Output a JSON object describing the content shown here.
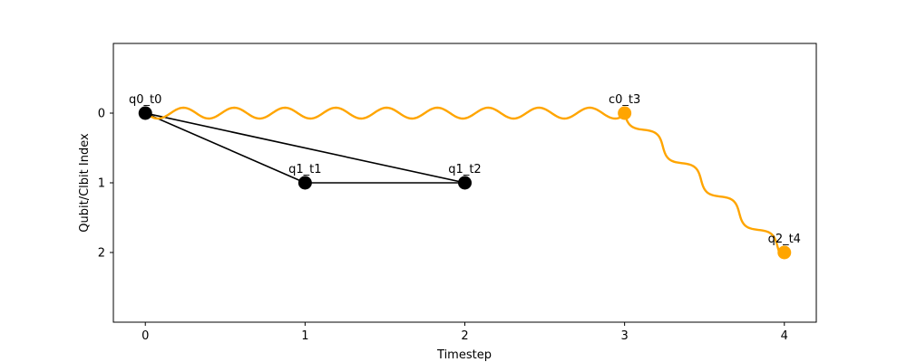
{
  "chart_data": {
    "type": "scatter",
    "title": "",
    "xlabel": "Timestep",
    "ylabel": "Qubit/Clbit Index",
    "xlim": [
      -0.2,
      4.2
    ],
    "ylim": [
      3.0,
      -1.0
    ],
    "y_inverted": true,
    "xticks": [
      0,
      1,
      2,
      3,
      4
    ],
    "yticks": [
      0,
      1,
      2
    ],
    "grid": false,
    "nodes": [
      {
        "label": "q0_t0",
        "x": 0,
        "y": 0,
        "color": "#000000"
      },
      {
        "label": "q1_t1",
        "x": 1,
        "y": 1,
        "color": "#000000"
      },
      {
        "label": "q1_t2",
        "x": 2,
        "y": 1,
        "color": "#000000"
      },
      {
        "label": "c0_t3",
        "x": 3,
        "y": 0,
        "color": "#ffa500"
      },
      {
        "label": "q2_t4",
        "x": 4,
        "y": 2,
        "color": "#ffa500"
      }
    ],
    "edges": [
      {
        "from": 0,
        "to": 1,
        "style": "straight",
        "color": "#000000"
      },
      {
        "from": 0,
        "to": 2,
        "style": "straight",
        "color": "#000000"
      },
      {
        "from": 1,
        "to": 2,
        "style": "straight",
        "color": "#000000"
      },
      {
        "from": 0,
        "to": 3,
        "style": "wavy",
        "color": "#ffa500"
      },
      {
        "from": 3,
        "to": 4,
        "style": "wavy",
        "color": "#ffa500"
      }
    ]
  }
}
